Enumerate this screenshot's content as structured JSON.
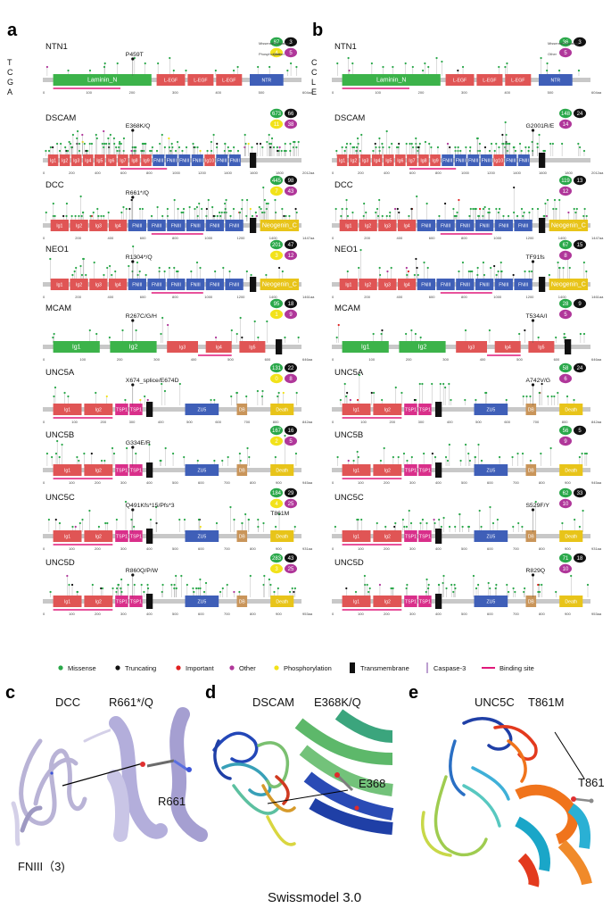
{
  "panel_labels": {
    "a": "a",
    "b": "b",
    "c": "c",
    "d": "d",
    "e": "e"
  },
  "cohort_a": [
    "T",
    "C",
    "G",
    "A"
  ],
  "cohort_b": [
    "C",
    "C",
    "L",
    "E"
  ],
  "panel_a": [
    {
      "gene": "NTN1",
      "mutation": "P459T",
      "length": "604aa",
      "counts": {
        "missense": "87",
        "truncating": "3",
        "phosphorylation": "4",
        "other": "5"
      },
      "counts_legend": {
        "missense": "Missense",
        "truncating": "Truncating",
        "phosphorylation": "Phosphorylation",
        "other": "Other"
      },
      "ticks": [
        "0",
        "100",
        "200",
        "300",
        "400",
        "500"
      ],
      "domains": [
        {
          "label": "Laminin_N",
          "color": "#3cb34a",
          "start": 0.04,
          "end": 0.42
        },
        {
          "label": "L-EGF",
          "color": "#e05555",
          "start": 0.44,
          "end": 0.55
        },
        {
          "label": "L-EGF",
          "color": "#e05555",
          "start": 0.56,
          "end": 0.66
        },
        {
          "label": "L-EGF",
          "color": "#e05555",
          "start": 0.67,
          "end": 0.77
        },
        {
          "label": "NTR",
          "color": "#3f5fb8",
          "start": 0.8,
          "end": 0.93
        }
      ]
    },
    {
      "gene": "DSCAM",
      "mutation": "E368K/Q",
      "length": "2012aa",
      "counts": {
        "missense": "673",
        "truncating": "66",
        "phosphorylation": "11",
        "other": "38"
      },
      "ticks": [
        "0",
        "200",
        "400",
        "600",
        "800",
        "1000",
        "1200",
        "1400",
        "1600",
        "1800"
      ],
      "domains": [
        {
          "label": "Ig1",
          "color": "#e05555",
          "start": 0.02,
          "end": 0.06
        },
        {
          "label": "Ig2",
          "color": "#e05555",
          "start": 0.065,
          "end": 0.105
        },
        {
          "label": "Ig3",
          "color": "#e05555",
          "start": 0.11,
          "end": 0.15
        },
        {
          "label": "Ig4",
          "color": "#e05555",
          "start": 0.155,
          "end": 0.195
        },
        {
          "label": "Ig5",
          "color": "#e05555",
          "start": 0.2,
          "end": 0.24
        },
        {
          "label": "Ig6",
          "color": "#e05555",
          "start": 0.245,
          "end": 0.285
        },
        {
          "label": "Ig7",
          "color": "#e05555",
          "start": 0.29,
          "end": 0.33
        },
        {
          "label": "Ig8",
          "color": "#e05555",
          "start": 0.335,
          "end": 0.375
        },
        {
          "label": "Ig9",
          "color": "#e05555",
          "start": 0.38,
          "end": 0.42
        },
        {
          "label": "FNIII",
          "color": "#3f5fb8",
          "start": 0.425,
          "end": 0.47
        },
        {
          "label": "FNIII",
          "color": "#3f5fb8",
          "start": 0.475,
          "end": 0.52
        },
        {
          "label": "FNIII",
          "color": "#3f5fb8",
          "start": 0.525,
          "end": 0.57
        },
        {
          "label": "FNIII",
          "color": "#3f5fb8",
          "start": 0.575,
          "end": 0.62
        },
        {
          "label": "Ig10",
          "color": "#e05555",
          "start": 0.625,
          "end": 0.665
        },
        {
          "label": "FNIII",
          "color": "#3f5fb8",
          "start": 0.67,
          "end": 0.715
        },
        {
          "label": "FNIII",
          "color": "#3f5fb8",
          "start": 0.72,
          "end": 0.765
        }
      ]
    },
    {
      "gene": "DCC",
      "mutation": "R661*/Q",
      "length": "1447aa",
      "counts": {
        "missense": "445",
        "truncating": "98",
        "phosphorylation": "7",
        "other": "43"
      },
      "ticks": [
        "0",
        "200",
        "400",
        "600",
        "800",
        "1000",
        "1200",
        "1400"
      ],
      "domains": [
        {
          "label": "Ig1",
          "color": "#e05555",
          "start": 0.03,
          "end": 0.1
        },
        {
          "label": "Ig2",
          "color": "#e05555",
          "start": 0.105,
          "end": 0.175
        },
        {
          "label": "Ig3",
          "color": "#e05555",
          "start": 0.18,
          "end": 0.25
        },
        {
          "label": "Ig4",
          "color": "#e05555",
          "start": 0.255,
          "end": 0.325
        },
        {
          "label": "FNIII",
          "color": "#3f5fb8",
          "start": 0.33,
          "end": 0.4
        },
        {
          "label": "FNIII",
          "color": "#3f5fb8",
          "start": 0.405,
          "end": 0.475
        },
        {
          "label": "FNIII",
          "color": "#3f5fb8",
          "start": 0.48,
          "end": 0.55
        },
        {
          "label": "FNIII",
          "color": "#3f5fb8",
          "start": 0.555,
          "end": 0.625
        },
        {
          "label": "FNIII",
          "color": "#3f5fb8",
          "start": 0.63,
          "end": 0.7
        },
        {
          "label": "FNIII",
          "color": "#3f5fb8",
          "start": 0.705,
          "end": 0.775
        },
        {
          "label": "Neogenin_C",
          "color": "#e8c419",
          "start": 0.84,
          "end": 0.99
        }
      ]
    },
    {
      "gene": "NEO1",
      "mutation": "R1304*/Q",
      "length": "1461aa",
      "counts": {
        "missense": "201",
        "truncating": "47",
        "phosphorylation": "3",
        "other": "12"
      },
      "ticks": [
        "0",
        "200",
        "400",
        "600",
        "800",
        "1000",
        "1200",
        "1400"
      ],
      "domains": [
        {
          "label": "Ig1",
          "color": "#e05555",
          "start": 0.03,
          "end": 0.1
        },
        {
          "label": "Ig2",
          "color": "#e05555",
          "start": 0.105,
          "end": 0.175
        },
        {
          "label": "Ig3",
          "color": "#e05555",
          "start": 0.18,
          "end": 0.25
        },
        {
          "label": "Ig4",
          "color": "#e05555",
          "start": 0.255,
          "end": 0.325
        },
        {
          "label": "FNIII",
          "color": "#3f5fb8",
          "start": 0.33,
          "end": 0.4
        },
        {
          "label": "FNIII",
          "color": "#3f5fb8",
          "start": 0.405,
          "end": 0.475
        },
        {
          "label": "FNIII",
          "color": "#3f5fb8",
          "start": 0.48,
          "end": 0.55
        },
        {
          "label": "FNIII",
          "color": "#3f5fb8",
          "start": 0.555,
          "end": 0.625
        },
        {
          "label": "FNIII",
          "color": "#3f5fb8",
          "start": 0.63,
          "end": 0.7
        },
        {
          "label": "FNIII",
          "color": "#3f5fb8",
          "start": 0.705,
          "end": 0.775
        },
        {
          "label": "Neogenin_C",
          "color": "#e8c419",
          "start": 0.84,
          "end": 0.99
        }
      ]
    },
    {
      "gene": "MCAM",
      "mutation": "R267C/G/H",
      "length": "646aa",
      "counts": {
        "missense": "95",
        "truncating": "18",
        "phosphorylation": "1",
        "other": "9"
      },
      "ticks": [
        "0",
        "100",
        "200",
        "300",
        "400",
        "500",
        "600"
      ],
      "domains": [
        {
          "label": "Ig1",
          "color": "#3cb34a",
          "start": 0.04,
          "end": 0.22
        },
        {
          "label": "Ig2",
          "color": "#3cb34a",
          "start": 0.26,
          "end": 0.44
        },
        {
          "label": "Ig3",
          "color": "#e05555",
          "start": 0.48,
          "end": 0.6
        },
        {
          "label": "Ig4",
          "color": "#e05555",
          "start": 0.63,
          "end": 0.73
        },
        {
          "label": "Ig5",
          "color": "#e05555",
          "start": 0.76,
          "end": 0.86
        }
      ]
    },
    {
      "gene": "UNC5A",
      "mutation": "X674_splice/E674D",
      "length": "842aa",
      "counts": {
        "missense": "131",
        "truncating": "22",
        "phosphorylation": "0",
        "other": "8"
      },
      "ticks": [
        "0",
        "100",
        "200",
        "300",
        "400",
        "500",
        "600",
        "700",
        "800"
      ],
      "domains": [
        {
          "label": "Ig1",
          "color": "#e05555",
          "start": 0.04,
          "end": 0.15
        },
        {
          "label": "Ig2",
          "color": "#e05555",
          "start": 0.16,
          "end": 0.27
        },
        {
          "label": "TSP1",
          "color": "#d92f8a",
          "start": 0.28,
          "end": 0.33
        },
        {
          "label": "TSP1",
          "color": "#d92f8a",
          "start": 0.335,
          "end": 0.385
        },
        {
          "label": "ZU5",
          "color": "#3f5fb8",
          "start": 0.55,
          "end": 0.68
        },
        {
          "label": "DB",
          "color": "#c9955a",
          "start": 0.75,
          "end": 0.79
        },
        {
          "label": "Death",
          "color": "#e8c419",
          "start": 0.88,
          "end": 0.97
        }
      ]
    },
    {
      "gene": "UNC5B",
      "mutation": "G334E/R",
      "length": "945aa",
      "counts": {
        "missense": "167",
        "truncating": "16",
        "phosphorylation": "2",
        "other": "5"
      },
      "ticks": [
        "0",
        "100",
        "200",
        "300",
        "400",
        "500",
        "600",
        "700",
        "800",
        "900"
      ],
      "domains": [
        {
          "label": "Ig1",
          "color": "#e05555",
          "start": 0.04,
          "end": 0.15
        },
        {
          "label": "Ig2",
          "color": "#e05555",
          "start": 0.16,
          "end": 0.27
        },
        {
          "label": "TSP1",
          "color": "#d92f8a",
          "start": 0.28,
          "end": 0.33
        },
        {
          "label": "TSP1",
          "color": "#d92f8a",
          "start": 0.335,
          "end": 0.385
        },
        {
          "label": "ZU5",
          "color": "#3f5fb8",
          "start": 0.55,
          "end": 0.68
        },
        {
          "label": "DB",
          "color": "#c9955a",
          "start": 0.75,
          "end": 0.79
        },
        {
          "label": "Death",
          "color": "#e8c419",
          "start": 0.88,
          "end": 0.97
        }
      ]
    },
    {
      "gene": "UNC5C",
      "mutation": "Q491Kfs*15/Pfs*3",
      "mutation2": "T861M",
      "length": "931aa",
      "counts": {
        "missense": "184",
        "truncating": "29",
        "phosphorylation": "4",
        "other": "25"
      },
      "ticks": [
        "0",
        "100",
        "200",
        "300",
        "400",
        "500",
        "600",
        "700",
        "800",
        "900"
      ],
      "domains": [
        {
          "label": "Ig1",
          "color": "#e05555",
          "start": 0.04,
          "end": 0.15
        },
        {
          "label": "Ig2",
          "color": "#e05555",
          "start": 0.16,
          "end": 0.27
        },
        {
          "label": "TSP1",
          "color": "#d92f8a",
          "start": 0.28,
          "end": 0.33
        },
        {
          "label": "TSP1",
          "color": "#d92f8a",
          "start": 0.335,
          "end": 0.385
        },
        {
          "label": "ZU5",
          "color": "#3f5fb8",
          "start": 0.55,
          "end": 0.68
        },
        {
          "label": "DB",
          "color": "#c9955a",
          "start": 0.75,
          "end": 0.79
        },
        {
          "label": "Death",
          "color": "#e8c419",
          "start": 0.88,
          "end": 0.97
        }
      ]
    },
    {
      "gene": "UNC5D",
      "mutation": "R860Q/P/W",
      "length": "953aa",
      "counts": {
        "missense": "283",
        "truncating": "43",
        "phosphorylation": "3",
        "other": "25"
      },
      "ticks": [
        "0",
        "100",
        "200",
        "300",
        "400",
        "500",
        "600",
        "700",
        "800",
        "900"
      ],
      "domains": [
        {
          "label": "Ig1",
          "color": "#e05555",
          "start": 0.04,
          "end": 0.15
        },
        {
          "label": "Ig2",
          "color": "#e05555",
          "start": 0.16,
          "end": 0.27
        },
        {
          "label": "TSP1",
          "color": "#d92f8a",
          "start": 0.28,
          "end": 0.33
        },
        {
          "label": "TSP1",
          "color": "#d92f8a",
          "start": 0.335,
          "end": 0.385
        },
        {
          "label": "ZU5",
          "color": "#3f5fb8",
          "start": 0.55,
          "end": 0.68
        },
        {
          "label": "DB",
          "color": "#c9955a",
          "start": 0.75,
          "end": 0.79
        },
        {
          "label": "Death",
          "color": "#e8c419",
          "start": 0.88,
          "end": 0.97
        }
      ]
    }
  ],
  "panel_b": [
    {
      "gene": "NTN1",
      "mutation": "",
      "length": "604aa",
      "counts": {
        "missense": "36",
        "truncating": "3",
        "other": "5"
      },
      "counts_legend": {
        "missense": "Missense",
        "truncating": "Truncating",
        "other": "Other"
      }
    },
    {
      "gene": "DSCAM",
      "mutation": "G2001R/E",
      "length": "2012aa",
      "counts": {
        "missense": "148",
        "truncating": "24",
        "other": "14"
      }
    },
    {
      "gene": "DCC",
      "mutation": "",
      "length": "1447aa",
      "counts": {
        "missense": "119",
        "truncating": "13",
        "other": "12"
      }
    },
    {
      "gene": "NEO1",
      "mutation": "TF91fs",
      "length": "1461aa",
      "counts": {
        "missense": "67",
        "truncating": "15",
        "other": "8"
      }
    },
    {
      "gene": "MCAM",
      "mutation": "T534A/I",
      "length": "646aa",
      "counts": {
        "missense": "28",
        "truncating": "9",
        "other": "5"
      }
    },
    {
      "gene": "UNC5A",
      "mutation": "A742V/G",
      "length": "842aa",
      "counts": {
        "missense": "58",
        "truncating": "24",
        "other": "6"
      }
    },
    {
      "gene": "UNC5B",
      "mutation": "",
      "length": "945aa",
      "counts": {
        "missense": "56",
        "truncating": "5",
        "other": "9"
      }
    },
    {
      "gene": "UNC5C",
      "mutation": "S529F/Y",
      "length": "931aa",
      "counts": {
        "missense": "62",
        "truncating": "33",
        "other": "10"
      }
    },
    {
      "gene": "UNC5D",
      "mutation": "R829Q",
      "length": "953aa",
      "counts": {
        "missense": "71",
        "truncating": "18",
        "other": "10"
      }
    }
  ],
  "legend": {
    "missense": "Missense",
    "truncating": "Truncating",
    "important": "Important",
    "other": "Other",
    "phosphorylation": "Phosphorylation",
    "transmembrane": "Transmembrane",
    "caspase": "Caspase-3",
    "binding": "Binding site"
  },
  "colors": {
    "missense": "#2aa84a",
    "truncating": "#111111",
    "important": "#e02020",
    "other": "#b0379a",
    "phosphorylation": "#f2e21a",
    "binding": "#e0197a"
  },
  "structures": {
    "c": {
      "protein": "DCC",
      "mutation": "R661*/Q",
      "residue": "R661",
      "domain": "FNIII（3)"
    },
    "d": {
      "protein": "DSCAM",
      "mutation": "E368K/Q",
      "residue": "E368"
    },
    "e": {
      "protein": "UNC5C",
      "mutation": "T861M",
      "residue": "T861"
    }
  },
  "caption": "Swissmodel 3.0"
}
